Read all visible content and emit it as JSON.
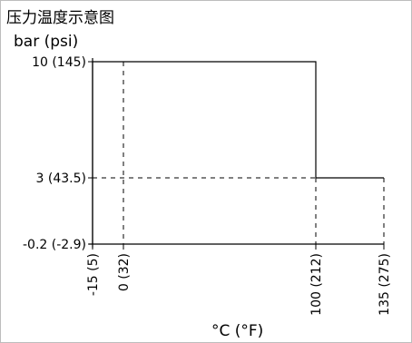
{
  "chart_data": {
    "type": "line",
    "title": "压力温度示意图",
    "ylabel": "bar (psi)",
    "xlabel": "°C (°F)",
    "x_ticks": [
      "-15 (5)",
      "0 (32)",
      "100 (212)",
      "135 (275)"
    ],
    "y_ticks": [
      "10 (145)",
      "3 (43.5)",
      "-0.2 (-2.9)"
    ],
    "x_tick_values": [
      -15,
      0,
      100,
      135
    ],
    "y_tick_values": [
      10,
      3,
      -0.2
    ],
    "series": [
      {
        "x": [
          -15,
          -15,
          100,
          100,
          135
        ],
        "y": [
          -0.2,
          10,
          10,
          3,
          3
        ]
      }
    ],
    "grid": "dashed reference lines at tick values",
    "colors": {
      "line": "#000000",
      "frame": "#bdbdbd",
      "background": "#ffffff"
    }
  }
}
